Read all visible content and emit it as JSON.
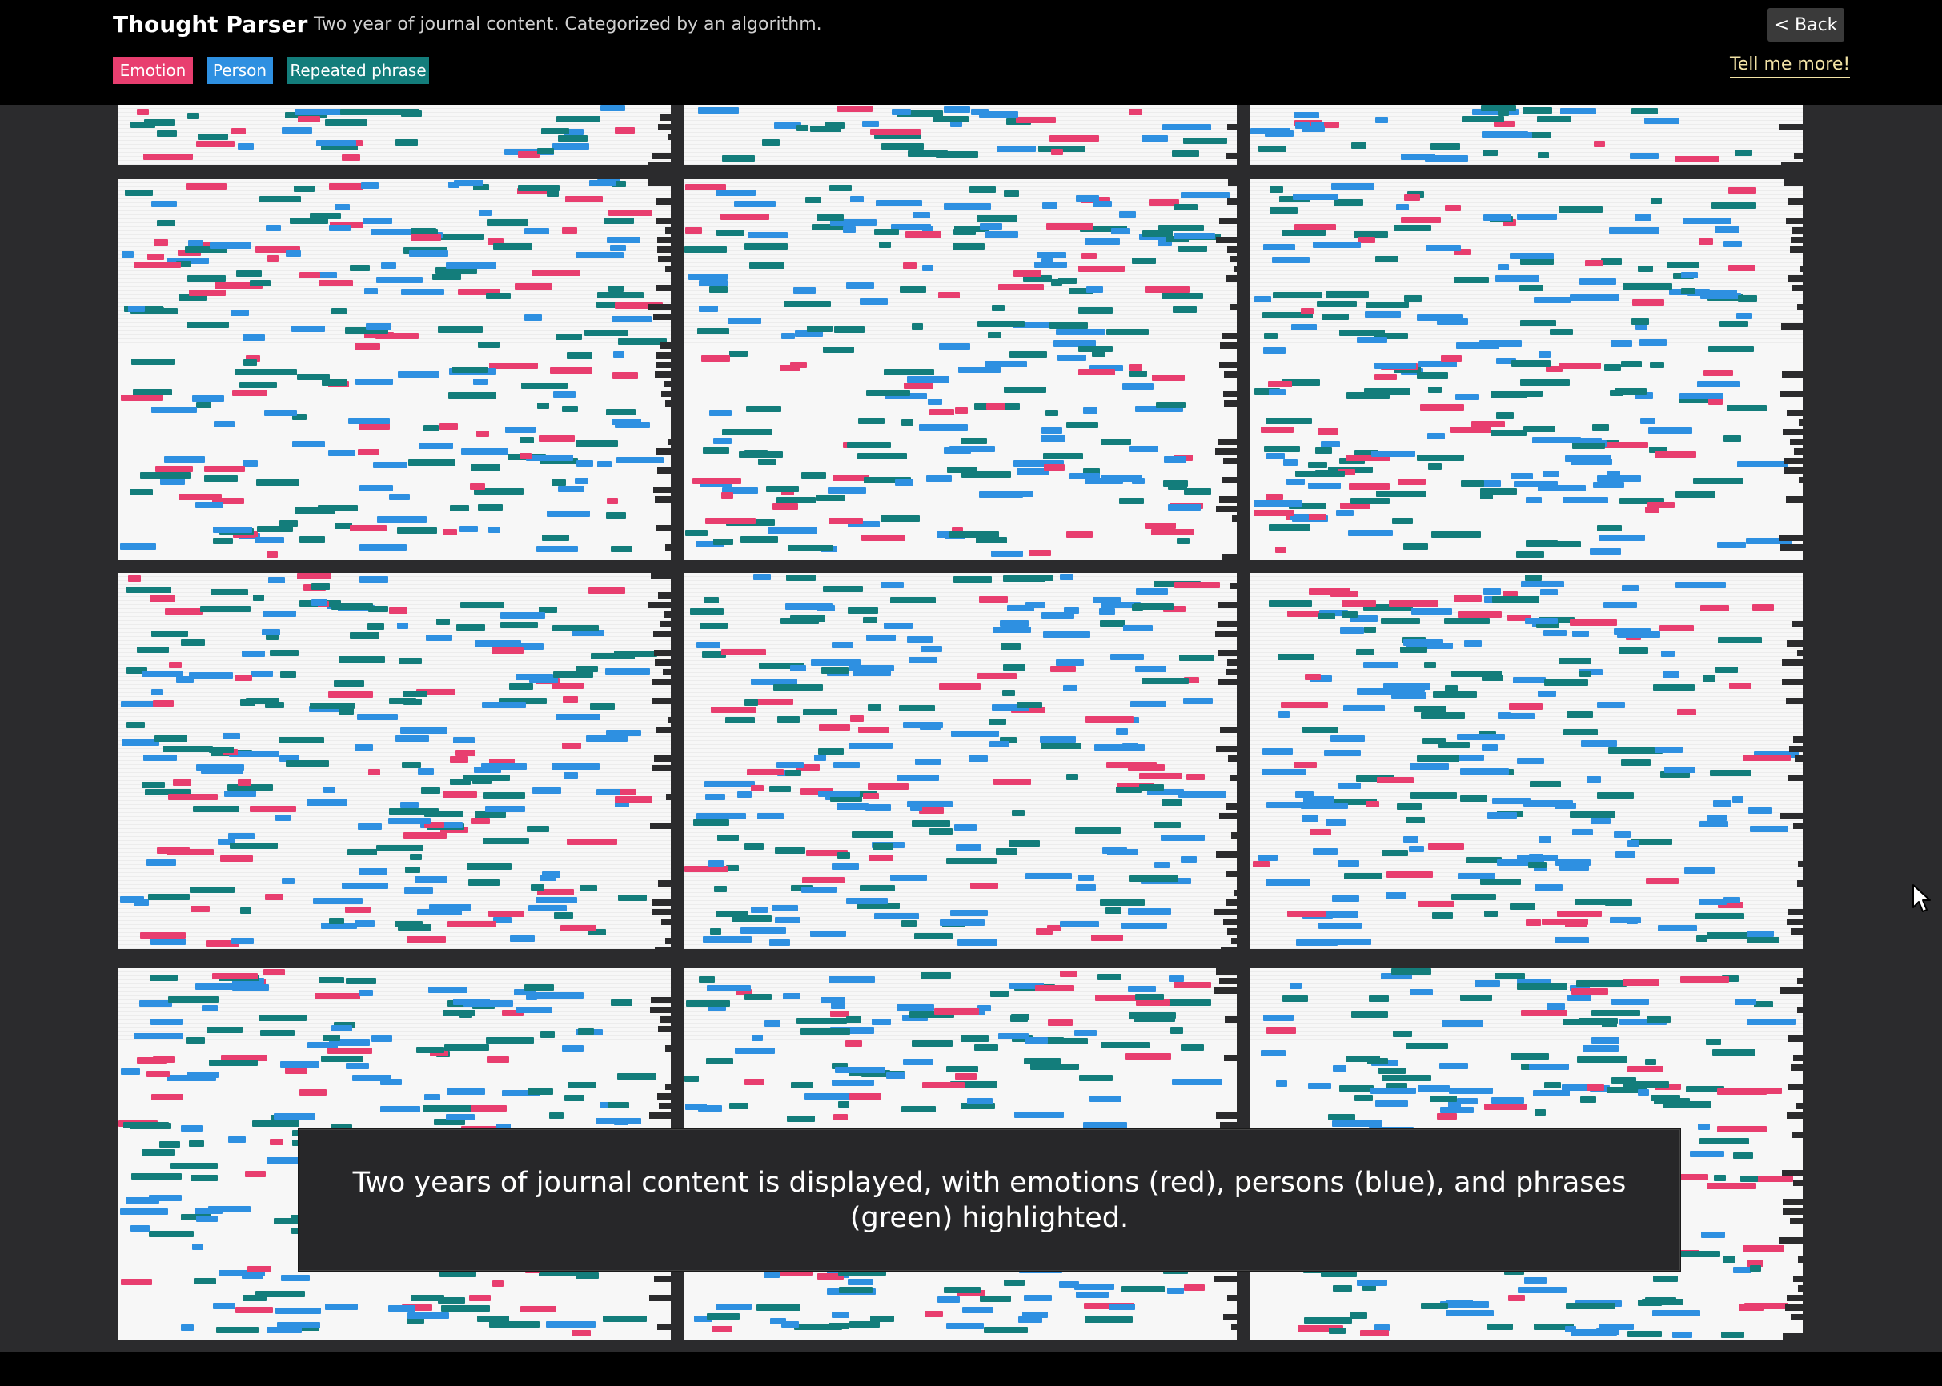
{
  "app": {
    "title": "Thought Parser",
    "subtitle": "Two year of journal content. Categorized by an algorithm.",
    "back_label": "< Back",
    "more_label": "Tell me more!"
  },
  "legend": [
    {
      "label": "Emotion",
      "color": "#e83e6f"
    },
    {
      "label": "Person",
      "color": "#2e90e1"
    },
    {
      "label": "Repeated phrase",
      "color": "#137d7b"
    }
  ],
  "caption": "Two years of journal content is displayed, with emotions (red), persons (blue), and phrases (green) highlighted.",
  "colors": {
    "background": "#2b2b2d",
    "header": "#000000",
    "emotion": "#e83e6f",
    "person": "#2e90e1",
    "phrase": "#137d7b",
    "link": "#f3e3a6"
  },
  "icons": {
    "cursor": "mouse-pointer-icon"
  }
}
